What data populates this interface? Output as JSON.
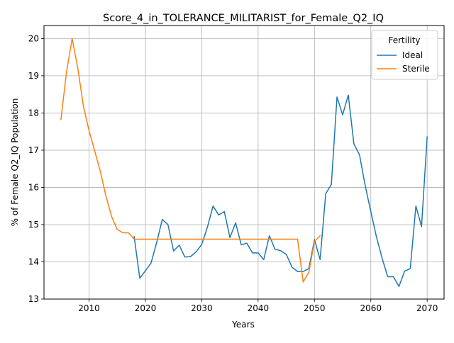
{
  "chart_data": {
    "type": "line",
    "title": "Score_4_in_TOLERANCE_MILITARIST_for_Female_Q2_IQ",
    "xlabel": "Years",
    "ylabel": "% of Female Q2_IQ Population",
    "xlim": [
      2002,
      2073
    ],
    "ylim": [
      13,
      20.35
    ],
    "xticks": [
      2010,
      2020,
      2030,
      2040,
      2050,
      2060,
      2070
    ],
    "yticks": [
      13,
      14,
      15,
      16,
      17,
      18,
      19,
      20
    ],
    "grid": true,
    "legend": {
      "title": "Fertility",
      "position": "top-right"
    },
    "series": [
      {
        "name": "Ideal",
        "color": "#1f77b4",
        "x": [
          2018,
          2019,
          2020,
          2021,
          2022,
          2023,
          2024,
          2025,
          2026,
          2027,
          2028,
          2029,
          2030,
          2031,
          2032,
          2033,
          2034,
          2035,
          2036,
          2037,
          2038,
          2039,
          2040,
          2041,
          2042,
          2043,
          2044,
          2045,
          2046,
          2047,
          2048,
          2049,
          2050,
          2051,
          2052,
          2053,
          2054,
          2055,
          2056,
          2057,
          2058,
          2059,
          2060,
          2061,
          2062,
          2063,
          2064,
          2065,
          2066,
          2067,
          2068,
          2069,
          2070
        ],
        "y": [
          14.68,
          13.56,
          13.76,
          13.97,
          14.52,
          15.14,
          15.0,
          14.29,
          14.45,
          14.13,
          14.14,
          14.27,
          14.47,
          14.93,
          15.5,
          15.26,
          15.35,
          14.65,
          15.05,
          14.46,
          14.5,
          14.24,
          14.24,
          14.06,
          14.7,
          14.34,
          14.3,
          14.2,
          13.86,
          13.74,
          13.74,
          13.82,
          14.6,
          14.06,
          15.83,
          16.08,
          18.43,
          17.95,
          18.48,
          17.17,
          16.87,
          16.05,
          15.35,
          14.67,
          14.1,
          13.6,
          13.6,
          13.34,
          13.75,
          13.82,
          15.5,
          14.95,
          17.36
        ]
      },
      {
        "name": "Sterile",
        "color": "#ff7f0e",
        "x": [
          2005,
          2006,
          2007,
          2008,
          2009,
          2010,
          2011,
          2012,
          2013,
          2014,
          2015,
          2016,
          2017,
          2018,
          2019,
          2020,
          2021,
          2022,
          2023,
          2024,
          2025,
          2026,
          2027,
          2028,
          2029,
          2030,
          2031,
          2032,
          2033,
          2034,
          2035,
          2036,
          2037,
          2038,
          2039,
          2040,
          2041,
          2042,
          2043,
          2044,
          2045,
          2046,
          2047,
          2048,
          2049,
          2050,
          2051
        ],
        "y": [
          17.82,
          19.1,
          20.0,
          19.2,
          18.18,
          17.52,
          16.98,
          16.43,
          15.76,
          15.22,
          14.87,
          14.78,
          14.78,
          14.61,
          14.61,
          14.61,
          14.61,
          14.61,
          14.61,
          14.61,
          14.61,
          14.61,
          14.61,
          14.61,
          14.61,
          14.61,
          14.61,
          14.61,
          14.61,
          14.61,
          14.61,
          14.61,
          14.61,
          14.61,
          14.61,
          14.61,
          14.61,
          14.61,
          14.61,
          14.61,
          14.61,
          14.61,
          14.61,
          13.46,
          13.72,
          14.55,
          14.7
        ]
      }
    ]
  }
}
